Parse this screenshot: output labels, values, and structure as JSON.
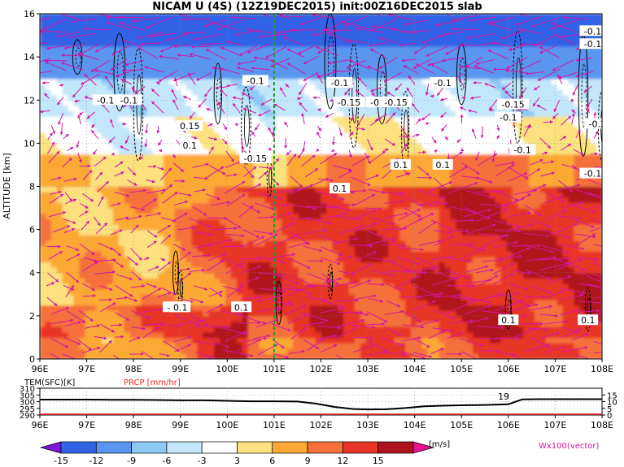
{
  "title": "NICAM U (4S) (12Z19DEC2015) init:00Z16DEC2015 slab",
  "colors": {
    "lv_m15": "#7d16d9",
    "lv_m12": "#3263e6",
    "lv_m9": "#5a96f0",
    "lv_m6": "#8ec8f5",
    "lv_m3": "#c2e6fa",
    "lv_3": "#ffffff",
    "lv_6": "#fce17e",
    "lv_9": "#fca834",
    "lv_12": "#f5703b",
    "lv_15": "#e83526",
    "lv_dark": "#b0121e",
    "lv_over": "#e8138e",
    "arrow": "#d417a5",
    "contour": "#000000",
    "prcp": "#ff2020",
    "vline": "#1f9e2a",
    "grid": "#888888"
  },
  "chart_data": [
    {
      "type": "heatmap",
      "title": "NICAM U (4S) (12Z19DEC2015) init:00Z16DEC2015 slab",
      "ylabel": "ALTITUDE [km]",
      "xlim": [
        96,
        108
      ],
      "ylim": [
        0,
        16
      ],
      "x_ticks": [
        "96E",
        "97E",
        "98E",
        "99E",
        "100E",
        "101E",
        "102E",
        "103E",
        "104E",
        "105E",
        "106E",
        "107E",
        "108E"
      ],
      "y_ticks": [
        "0",
        "2",
        "4",
        "6",
        "8",
        "10",
        "12",
        "14",
        "16"
      ],
      "colorbar": {
        "levels": [
          "-15",
          "-12",
          "-9",
          "-6",
          "-3",
          "3",
          "6",
          "9",
          "12",
          "15"
        ],
        "unit": "[m/s]"
      },
      "vector_label": "Wx100(vector)",
      "marked_longitude": 101,
      "contour_labels": [
        {
          "text": "-0.1",
          "x": 97.4,
          "y": 12.0
        },
        {
          "text": "-0.1",
          "x": 97.9,
          "y": 12.0
        },
        {
          "text": "0.15",
          "x": 99.2,
          "y": 10.8
        },
        {
          "text": "0.1",
          "x": 99.2,
          "y": 9.9
        },
        {
          "text": "-0.15",
          "x": 100.6,
          "y": 9.3
        },
        {
          "text": "-0.1",
          "x": 100.6,
          "y": 12.9
        },
        {
          "text": "-0.1",
          "x": 102.4,
          "y": 12.8
        },
        {
          "text": "-0.15",
          "x": 102.6,
          "y": 11.9
        },
        {
          "text": "-0.15",
          "x": 103.3,
          "y": 11.9
        },
        {
          "text": "-0.15",
          "x": 103.6,
          "y": 11.9
        },
        {
          "text": "-0.1",
          "x": 104.6,
          "y": 12.8
        },
        {
          "text": "-0.15",
          "x": 106.1,
          "y": 11.8
        },
        {
          "text": "-0.1",
          "x": 106.0,
          "y": 11.2
        },
        {
          "text": "0.1",
          "x": 103.7,
          "y": 9.0
        },
        {
          "text": "0.1",
          "x": 104.6,
          "y": 9.0
        },
        {
          "text": "0.1",
          "x": 102.4,
          "y": 7.9
        },
        {
          "text": "-0.1",
          "x": 106.3,
          "y": 9.7
        },
        {
          "text": "-0.1",
          "x": 107.8,
          "y": 15.2
        },
        {
          "text": "-0.1",
          "x": 107.8,
          "y": 14.6
        },
        {
          "text": "-0.2",
          "x": 107.9,
          "y": 10.9
        },
        {
          "text": "-0.1",
          "x": 107.8,
          "y": 8.6
        },
        {
          "text": "-0.1",
          "x": 98.9,
          "y": 2.4
        },
        {
          "text": "0.1",
          "x": 99.0,
          "y": 2.4
        },
        {
          "text": "0.1",
          "x": 100.3,
          "y": 2.4
        },
        {
          "text": "0.1",
          "x": 106.0,
          "y": 1.8
        },
        {
          "text": "0.1",
          "x": 107.7,
          "y": 1.8
        }
      ]
    },
    {
      "type": "line",
      "legend": [
        "TEM(SFC)[K]",
        "PRCP [mm/hr]"
      ],
      "left_ticks": [
        "310",
        "305",
        "300",
        "295",
        "290"
      ],
      "right_ticks": [
        "15",
        "10",
        "5",
        "0"
      ],
      "xlim": [
        96,
        108
      ],
      "x_ticks": [
        "96E",
        "97E",
        "98E",
        "99E",
        "100E",
        "101E",
        "102E",
        "103E",
        "104E",
        "105E",
        "106E",
        "107E",
        "108E"
      ],
      "series": [
        {
          "name": "TEM(SFC)[K]",
          "x": [
            96,
            96.5,
            97,
            97.5,
            98,
            98.5,
            99,
            99.5,
            100,
            100.5,
            101,
            101.5,
            101.9,
            102.3,
            102.7,
            103.0,
            103.4,
            103.8,
            104.2,
            104.6,
            105.0,
            105.5,
            106.0,
            106.3,
            106.7,
            107.2,
            108
          ],
          "values": [
            301.5,
            301.5,
            301.5,
            301.4,
            301.4,
            301.2,
            301,
            301,
            300.6,
            300.2,
            300.2,
            300.1,
            298.5,
            296.0,
            294.5,
            294.2,
            294.3,
            295.2,
            296.5,
            297.0,
            297.3,
            297.5,
            298.0,
            301.7,
            301.8,
            301.8,
            301.8
          ]
        },
        {
          "name": "PRCP [mm/hr]",
          "x": [
            96,
            108
          ],
          "values": [
            0,
            0
          ]
        }
      ],
      "annotations": [
        {
          "text": "19",
          "x": 105.9
        }
      ]
    }
  ]
}
